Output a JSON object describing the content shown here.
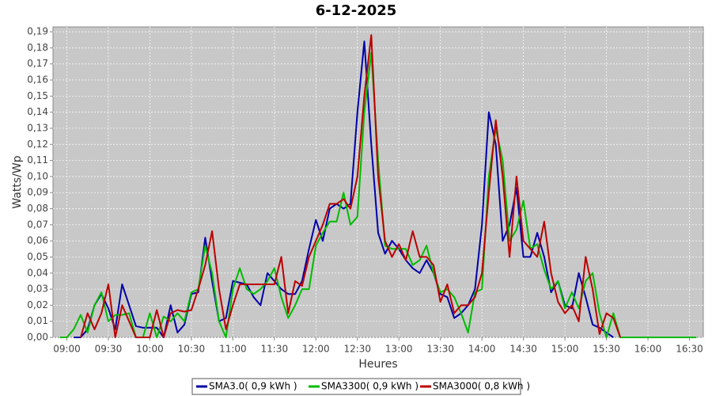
{
  "chart_data": {
    "type": "line",
    "title": "6-12-2025",
    "x_label": "Heures",
    "y_label": "Watts/Wp",
    "x": [
      "08:55",
      "09:00",
      "09:05",
      "09:10",
      "09:15",
      "09:20",
      "09:25",
      "09:30",
      "09:35",
      "09:40",
      "09:45",
      "09:50",
      "09:55",
      "10:00",
      "10:05",
      "10:10",
      "10:15",
      "10:20",
      "10:25",
      "10:30",
      "10:35",
      "10:40",
      "10:45",
      "10:50",
      "10:55",
      "11:00",
      "11:05",
      "11:10",
      "11:15",
      "11:20",
      "11:25",
      "11:30",
      "11:35",
      "11:40",
      "11:45",
      "11:50",
      "11:55",
      "12:00",
      "12:05",
      "12:10",
      "12:15",
      "12:20",
      "12:25",
      "12:30",
      "12:35",
      "12:40",
      "12:45",
      "12:50",
      "12:55",
      "13:00",
      "13:05",
      "13:10",
      "13:15",
      "13:20",
      "13:25",
      "13:30",
      "13:35",
      "13:40",
      "13:45",
      "13:50",
      "13:55",
      "14:00",
      "14:05",
      "14:10",
      "14:15",
      "14:20",
      "14:25",
      "14:30",
      "14:35",
      "14:40",
      "14:45",
      "14:50",
      "14:55",
      "15:00",
      "15:05",
      "15:10",
      "15:15",
      "15:20",
      "15:25",
      "15:30",
      "15:35",
      "15:40",
      "15:45",
      "15:50",
      "15:55",
      "16:00",
      "16:05",
      "16:10",
      "16:15",
      "16:20",
      "16:25",
      "16:30",
      "16:35"
    ],
    "series": [
      {
        "name": "SMA3.0( 0,9 kWh )",
        "color": "#0000aa",
        "values": [
          null,
          null,
          0,
          0,
          0.005,
          0.02,
          0.027,
          0.018,
          0.005,
          0.033,
          0.02,
          0.007,
          0.006,
          0.006,
          0.006,
          0,
          0.02,
          0.003,
          0.008,
          0.027,
          0.028,
          0.062,
          0.035,
          0.01,
          0.012,
          0.035,
          0.034,
          0.033,
          0.025,
          0.02,
          0.04,
          0.035,
          0.03,
          0.027,
          0.027,
          0.035,
          0.055,
          0.073,
          0.06,
          0.08,
          0.083,
          0.08,
          0.083,
          0.14,
          0.184,
          0.12,
          0.065,
          0.052,
          0.06,
          0.055,
          0.048,
          0.043,
          0.04,
          0.048,
          0.04,
          0.027,
          0.025,
          0.012,
          0.015,
          0.02,
          0.03,
          0.07,
          0.14,
          0.12,
          0.06,
          0.07,
          0.093,
          0.05,
          0.05,
          0.065,
          0.05,
          0.028,
          0.035,
          0.02,
          0.018,
          0.04,
          0.025,
          0.008,
          0.006,
          0.003,
          0,
          null,
          null,
          null,
          null,
          null,
          null,
          null,
          null,
          null,
          null,
          null,
          null
        ]
      },
      {
        "name": "SMA3300( 0,9 kWh )",
        "color": "#00bb00",
        "values": [
          0,
          0,
          0.005,
          0.014,
          0.003,
          0.02,
          0.028,
          0.01,
          0.014,
          0.014,
          0.015,
          0,
          0,
          0.015,
          0,
          0.013,
          0.01,
          0.015,
          0.01,
          0.028,
          0.03,
          0.057,
          0.04,
          0.01,
          0,
          0.03,
          0.043,
          0.03,
          0.027,
          0.03,
          0.035,
          0.043,
          0.025,
          0.012,
          0.02,
          0.03,
          0.03,
          0.057,
          0.065,
          0.072,
          0.072,
          0.09,
          0.07,
          0.075,
          0.14,
          0.177,
          0.11,
          0.057,
          0.055,
          0.055,
          0.055,
          0.045,
          0.048,
          0.057,
          0.04,
          0.028,
          0.03,
          0.025,
          0.015,
          0.003,
          0.028,
          0.03,
          0.1,
          0.13,
          0.11,
          0.06,
          0.067,
          0.085,
          0.055,
          0.058,
          0.042,
          0.03,
          0.035,
          0.018,
          0.028,
          0.018,
          0.035,
          0.04,
          0.015,
          0,
          0.015,
          0,
          0,
          0,
          0,
          0,
          0,
          0,
          0,
          0,
          0,
          0,
          0
        ]
      },
      {
        "name": "SMA3000( 0,8 kWh )",
        "color": "#bb0000",
        "values": [
          null,
          null,
          null,
          0,
          0.015,
          0.005,
          0.015,
          0.033,
          0,
          0.02,
          0.01,
          0,
          0,
          0,
          0.017,
          0,
          0.015,
          0.017,
          0.016,
          0.017,
          0.03,
          0.045,
          0.066,
          0.03,
          0.005,
          0.02,
          0.033,
          0.033,
          0.033,
          0.033,
          0.033,
          0.033,
          0.05,
          0.015,
          0.035,
          0.032,
          0.05,
          0.06,
          0.07,
          0.083,
          0.083,
          0.086,
          0.08,
          0.1,
          0.15,
          0.188,
          0.1,
          0.06,
          0.05,
          0.058,
          0.048,
          0.066,
          0.05,
          0.05,
          0.045,
          0.022,
          0.033,
          0.015,
          0.02,
          0.02,
          0.025,
          0.04,
          0.09,
          0.135,
          0.1,
          0.05,
          0.1,
          0.06,
          0.055,
          0.05,
          0.072,
          0.04,
          0.022,
          0.015,
          0.02,
          0.01,
          0.05,
          0.03,
          0.002,
          0.015,
          0.012,
          0,
          null,
          null,
          null,
          null,
          null,
          null,
          null,
          null,
          null,
          null,
          null
        ]
      }
    ],
    "xlim": [
      "08:50",
      "16:40"
    ],
    "xticks": [
      "09:00",
      "09:30",
      "10:00",
      "10:30",
      "11:00",
      "11:30",
      "12:00",
      "12:30",
      "13:00",
      "13:30",
      "14:00",
      "14:30",
      "15:00",
      "15:30",
      "16:00",
      "16:30"
    ],
    "ylim": [
      0,
      0.193
    ],
    "yticks": [
      {
        "value": 0,
        "label": "0,00"
      },
      {
        "value": 0.01,
        "label": "0,01"
      },
      {
        "value": 0.02,
        "label": "0,02"
      },
      {
        "value": 0.03,
        "label": "0,03"
      },
      {
        "value": 0.04,
        "label": "0,04"
      },
      {
        "value": 0.05,
        "label": "0,05"
      },
      {
        "value": 0.06,
        "label": "0,06"
      },
      {
        "value": 0.07,
        "label": "0,07"
      },
      {
        "value": 0.08,
        "label": "0,08"
      },
      {
        "value": 0.09,
        "label": "0,09"
      },
      {
        "value": 0.1,
        "label": "0,10"
      },
      {
        "value": 0.11,
        "label": "0,11"
      },
      {
        "value": 0.12,
        "label": "0,12"
      },
      {
        "value": 0.13,
        "label": "0,13"
      },
      {
        "value": 0.14,
        "label": "0,14"
      },
      {
        "value": 0.15,
        "label": "0,15"
      },
      {
        "value": 0.16,
        "label": "0,16"
      },
      {
        "value": 0.17,
        "label": "0,17"
      },
      {
        "value": 0.18,
        "label": "0,18"
      },
      {
        "value": 0.19,
        "label": "0,19"
      }
    ],
    "grid": true,
    "legend": "bottom"
  }
}
